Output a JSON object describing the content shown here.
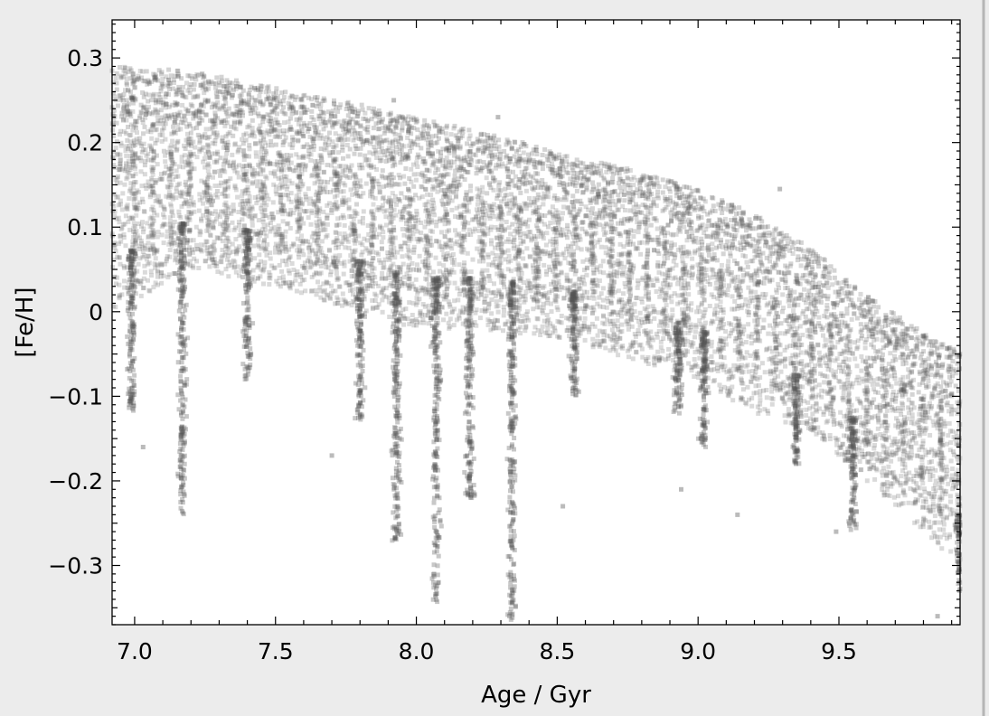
{
  "chart_data": {
    "type": "scatter",
    "title": "",
    "xlabel": "Age / Gyr",
    "ylabel": "[Fe/H]",
    "xlim": [
      6.92,
      9.93
    ],
    "ylim": [
      -0.37,
      0.345
    ],
    "xticks": [
      7.0,
      7.5,
      8.0,
      8.5,
      9.0,
      9.5
    ],
    "xtick_labels": [
      "7.0",
      "7.5",
      "8.0",
      "8.5",
      "9.0",
      "9.5"
    ],
    "yticks": [
      0.3,
      0.2,
      0.1,
      0,
      -0.1,
      -0.2,
      -0.3
    ],
    "ytick_labels": [
      "0.3",
      "0.2",
      "0.1",
      "0",
      "−0.1",
      "−0.2",
      "−0.3"
    ],
    "grid": false,
    "legend": "none",
    "marker_color": "#555555",
    "series": [
      {
        "description_of_distribution": "dense point cloud; upper envelope of [Fe/H] decreasing with age; vertical streaks extend downward",
        "upper_envelope": {
          "x": [
            6.92,
            7.2,
            7.5,
            7.8,
            8.0,
            8.2,
            8.5,
            8.8,
            9.0,
            9.2,
            9.4,
            9.6,
            9.8,
            9.93
          ],
          "y": [
            0.29,
            0.285,
            0.265,
            0.245,
            0.23,
            0.215,
            0.19,
            0.165,
            0.145,
            0.115,
            0.075,
            0.02,
            -0.025,
            -0.045
          ]
        },
        "lower_edge": {
          "x": [
            6.92,
            7.2,
            7.5,
            7.8,
            8.0,
            8.2,
            8.5,
            8.8,
            9.0,
            9.2,
            9.4,
            9.6,
            9.8,
            9.93
          ],
          "y": [
            0.0,
            0.05,
            0.03,
            0.0,
            -0.02,
            -0.02,
            -0.03,
            -0.06,
            -0.08,
            -0.12,
            -0.14,
            -0.2,
            -0.26,
            -0.3
          ]
        },
        "streaks": [
          {
            "x": 6.99,
            "y_min": -0.12
          },
          {
            "x": 7.17,
            "y_min": -0.24
          },
          {
            "x": 7.4,
            "y_min": -0.08
          },
          {
            "x": 7.8,
            "y_min": -0.13
          },
          {
            "x": 7.93,
            "y_min": -0.28
          },
          {
            "x": 8.07,
            "y_min": -0.345
          },
          {
            "x": 8.19,
            "y_min": -0.22
          },
          {
            "x": 8.34,
            "y_min": -0.365
          },
          {
            "x": 8.56,
            "y_min": -0.1
          },
          {
            "x": 8.93,
            "y_min": -0.12
          },
          {
            "x": 9.02,
            "y_min": -0.16
          },
          {
            "x": 9.35,
            "y_min": -0.18
          },
          {
            "x": 9.55,
            "y_min": -0.26
          },
          {
            "x": 9.93,
            "y_min": -0.33
          }
        ],
        "outliers": [
          {
            "x": 7.03,
            "y": -0.16
          },
          {
            "x": 7.7,
            "y": -0.17
          },
          {
            "x": 7.92,
            "y": 0.25
          },
          {
            "x": 8.29,
            "y": 0.23
          },
          {
            "x": 8.52,
            "y": -0.23
          },
          {
            "x": 8.94,
            "y": -0.21
          },
          {
            "x": 9.14,
            "y": -0.24
          },
          {
            "x": 9.29,
            "y": 0.145
          },
          {
            "x": 9.49,
            "y": -0.26
          },
          {
            "x": 9.85,
            "y": -0.36
          }
        ]
      }
    ]
  }
}
